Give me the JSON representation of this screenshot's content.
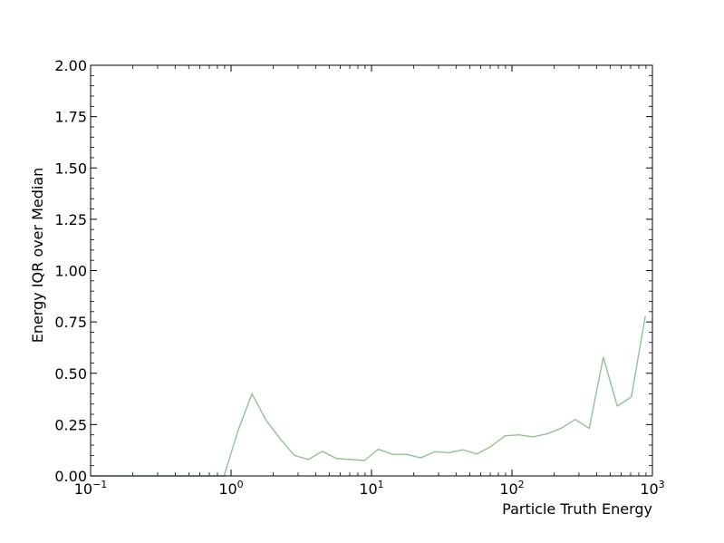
{
  "chart_data": {
    "type": "line",
    "title": "",
    "xlabel": "Particle Truth Energy",
    "ylabel": "Energy IQR over Median",
    "xscale": "log",
    "xlim": [
      0.1,
      1000
    ],
    "ylim": [
      0,
      2
    ],
    "grid": false,
    "legend": "none",
    "x_ticks": [
      {
        "value": 0.1,
        "base": "10",
        "exp": "−1"
      },
      {
        "value": 1,
        "base": "10",
        "exp": "0"
      },
      {
        "value": 10,
        "base": "10",
        "exp": "1"
      },
      {
        "value": 100,
        "base": "10",
        "exp": "2"
      },
      {
        "value": 1000,
        "base": "10",
        "exp": "3"
      }
    ],
    "y_ticks": [
      {
        "value": 0,
        "label": "0.00"
      },
      {
        "value": 0.25,
        "label": "0.25"
      },
      {
        "value": 0.5,
        "label": "0.50"
      },
      {
        "value": 0.75,
        "label": "0.75"
      },
      {
        "value": 1.0,
        "label": "1.00"
      },
      {
        "value": 1.25,
        "label": "1.25"
      },
      {
        "value": 1.5,
        "label": "1.50"
      },
      {
        "value": 1.75,
        "label": "1.75"
      },
      {
        "value": 2.0,
        "label": "2.00"
      }
    ],
    "series": [
      {
        "color": "#8fc48f",
        "x": [
          0.1,
          0.126,
          0.158,
          0.2,
          0.251,
          0.316,
          0.398,
          0.501,
          0.631,
          0.794,
          0.891,
          1.12,
          1.41,
          1.78,
          2.24,
          2.82,
          3.55,
          4.47,
          5.62,
          7.08,
          8.91,
          11.2,
          14.1,
          17.8,
          22.4,
          28.2,
          35.5,
          44.7,
          56.2,
          70.8,
          89.1,
          112,
          141,
          178,
          224,
          282,
          355,
          447,
          562,
          708,
          891
        ],
        "y": [
          0,
          0,
          0,
          0,
          0,
          0,
          0,
          0,
          0,
          0,
          0,
          0.22,
          0.4,
          0.27,
          0.18,
          0.1,
          0.08,
          0.12,
          0.085,
          0.08,
          0.075,
          0.13,
          0.105,
          0.105,
          0.088,
          0.118,
          0.113,
          0.127,
          0.107,
          0.143,
          0.195,
          0.2,
          0.19,
          0.205,
          0.232,
          0.275,
          0.232,
          0.578,
          0.34,
          0.385,
          0.78
        ]
      }
    ]
  }
}
